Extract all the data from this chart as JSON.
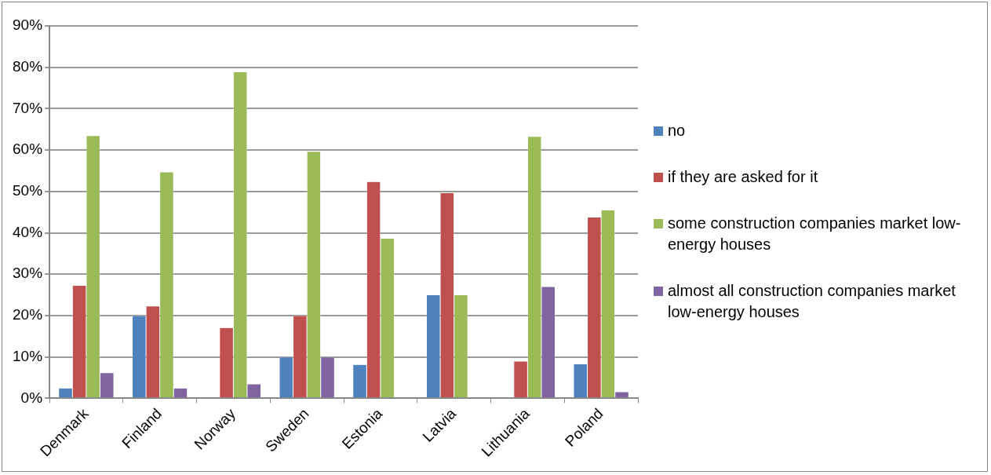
{
  "chart_data": {
    "type": "bar",
    "categories": [
      "Denmark",
      "Finland",
      "Norway",
      "Sweden",
      "Estonia",
      "Latvia",
      "Lithuania",
      "Poland"
    ],
    "series": [
      {
        "name": "no",
        "color": "#4f81bd",
        "values": [
          2.5,
          20,
          0,
          10,
          8.2,
          25,
          0,
          8.3
        ]
      },
      {
        "name": "if they are asked for it",
        "color": "#c0504d",
        "values": [
          27.3,
          22.3,
          17.1,
          20,
          52.4,
          49.7,
          9,
          43.8
        ]
      },
      {
        "name": "some construction companies market low-energy houses",
        "color": "#9bbb59",
        "values": [
          63.5,
          54.7,
          78.9,
          59.7,
          38.7,
          25,
          63.3,
          45.5
        ]
      },
      {
        "name": "almost all construction companies market low-energy houses",
        "color": "#8064a2",
        "values": [
          6.2,
          2.5,
          3.5,
          10,
          0,
          0,
          27,
          1.6
        ]
      }
    ],
    "ylim": [
      0,
      90
    ],
    "yticks": [
      {
        "value": 0,
        "label": "0%"
      },
      {
        "value": 10,
        "label": "10%"
      },
      {
        "value": 20,
        "label": "20%"
      },
      {
        "value": 30,
        "label": "30%"
      },
      {
        "value": 40,
        "label": "40%"
      },
      {
        "value": 50,
        "label": "50%"
      },
      {
        "value": 60,
        "label": "60%"
      },
      {
        "value": 70,
        "label": "70%"
      },
      {
        "value": 80,
        "label": "80%"
      },
      {
        "value": 90,
        "label": "90%"
      }
    ],
    "grid": "y",
    "legend": "right"
  }
}
